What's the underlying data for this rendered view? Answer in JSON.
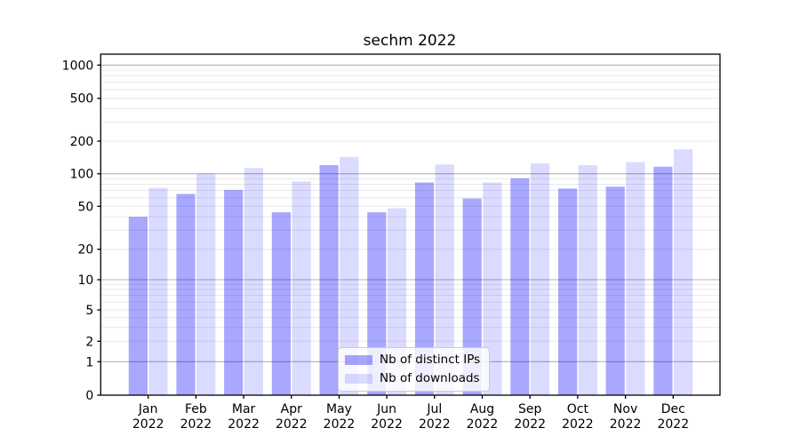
{
  "chart_data": {
    "type": "bar",
    "title": "sechm 2022",
    "categories": [
      "Jan 2022",
      "Feb 2022",
      "Mar 2022",
      "Apr 2022",
      "May 2022",
      "Jun 2022",
      "Jul 2022",
      "Aug 2022",
      "Sep 2022",
      "Oct 2022",
      "Nov 2022",
      "Dec 2022"
    ],
    "x_line2": "2022",
    "series": [
      {
        "name": "Nb of distinct IPs",
        "color": "#a8a8f6",
        "color_rgba": "rgba(0,0,255,0.34)",
        "values": [
          40,
          65,
          71,
          44,
          120,
          44,
          83,
          59,
          91,
          73,
          76,
          116
        ]
      },
      {
        "name": "Nb of downloads",
        "color": "#dcdcfb",
        "color_rgba": "rgba(0,0,255,0.14)",
        "values": [
          74,
          100,
          113,
          85,
          143,
          48,
          122,
          83,
          125,
          120,
          128,
          168
        ]
      }
    ],
    "yscale": "symlog",
    "yticks": [
      0,
      1,
      2,
      5,
      10,
      20,
      50,
      100,
      200,
      500,
      1000
    ],
    "ylim": [
      0,
      1260
    ],
    "xlabel": "",
    "ylabel": "",
    "grid": {
      "major": true,
      "minor": true,
      "major_color": "#b2b2b2",
      "minor_color": "#e8e8e8"
    },
    "legend_position": "lower center",
    "spine_color": "#000000",
    "background": "#ffffff"
  }
}
